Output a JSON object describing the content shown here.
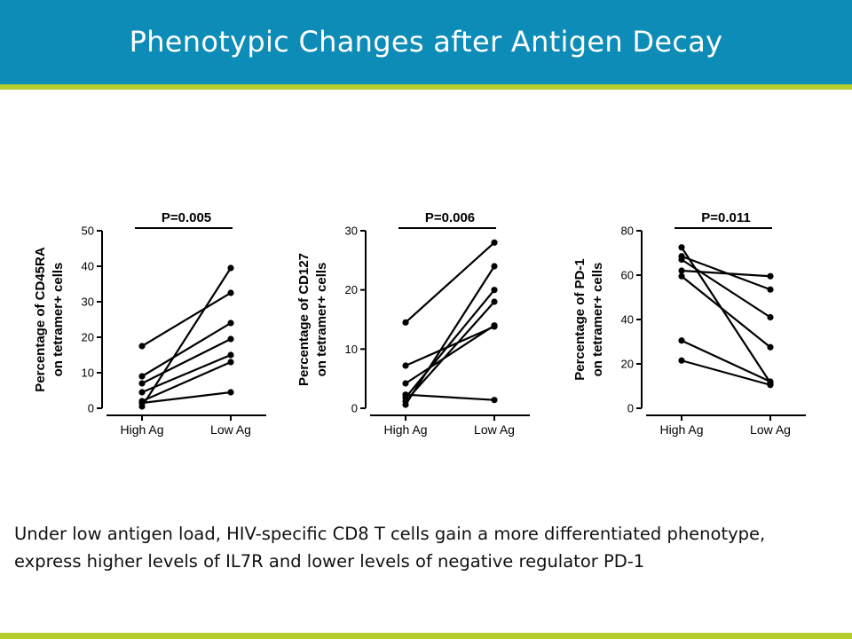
{
  "slide": {
    "title": "Phenotypic Changes after Antigen Decay",
    "caption_lines": [
      "Under low antigen load, HIV-specific CD8 T cells gain a more differentiated phenotype,",
      "express higher levels of IL7R and lower levels of negative regulator PD-1"
    ],
    "colors": {
      "header": "#0d8cb8",
      "accent_rule": "#b5cc2e",
      "title_text": "#ffffff",
      "ink": "#000000"
    }
  },
  "chart_data": [
    {
      "type": "line",
      "title": "P=0.005",
      "ylabel_lines": [
        "Percentage of CD45RA",
        "on tetramer+ cells"
      ],
      "categories": [
        "High Ag",
        "Low Ag"
      ],
      "ylim": [
        0,
        50
      ],
      "yticks": [
        0,
        10,
        20,
        30,
        40,
        50
      ],
      "series": [
        {
          "values": [
            17.5,
            32.5
          ]
        },
        {
          "values": [
            9,
            24
          ]
        },
        {
          "values": [
            7,
            19.5
          ]
        },
        {
          "values": [
            4.5,
            15
          ]
        },
        {
          "values": [
            2,
            13
          ]
        },
        {
          "values": [
            1.5,
            4.5
          ]
        },
        {
          "values": [
            0.5,
            39.5
          ]
        }
      ]
    },
    {
      "type": "line",
      "title": "P=0.006",
      "ylabel_lines": [
        "Percentage of CD127",
        "on tetramer+ cells"
      ],
      "categories": [
        "High Ag",
        "Low Ag"
      ],
      "ylim": [
        0,
        30
      ],
      "yticks": [
        0,
        10,
        20,
        30
      ],
      "series": [
        {
          "values": [
            14.5,
            28
          ]
        },
        {
          "values": [
            7.2,
            13.8
          ]
        },
        {
          "values": [
            4.2,
            14
          ]
        },
        {
          "values": [
            2.3,
            1.4
          ]
        },
        {
          "values": [
            1.8,
            20
          ]
        },
        {
          "values": [
            1.2,
            18
          ]
        },
        {
          "values": [
            0.6,
            24
          ]
        }
      ]
    },
    {
      "type": "line",
      "title": "P=0.011",
      "ylabel_lines": [
        "Percentage of PD-1",
        "on tetramer+ cells"
      ],
      "categories": [
        "High Ag",
        "Low Ag"
      ],
      "ylim": [
        0,
        80
      ],
      "yticks": [
        0,
        20,
        40,
        60,
        80
      ],
      "series": [
        {
          "values": [
            72.5,
            11.5
          ]
        },
        {
          "values": [
            68.5,
            53.5
          ]
        },
        {
          "values": [
            67,
            41
          ]
        },
        {
          "values": [
            62,
            59.5
          ]
        },
        {
          "values": [
            59.5,
            27.5
          ]
        },
        {
          "values": [
            30.5,
            12
          ]
        },
        {
          "values": [
            21.5,
            10.5
          ]
        }
      ]
    }
  ]
}
